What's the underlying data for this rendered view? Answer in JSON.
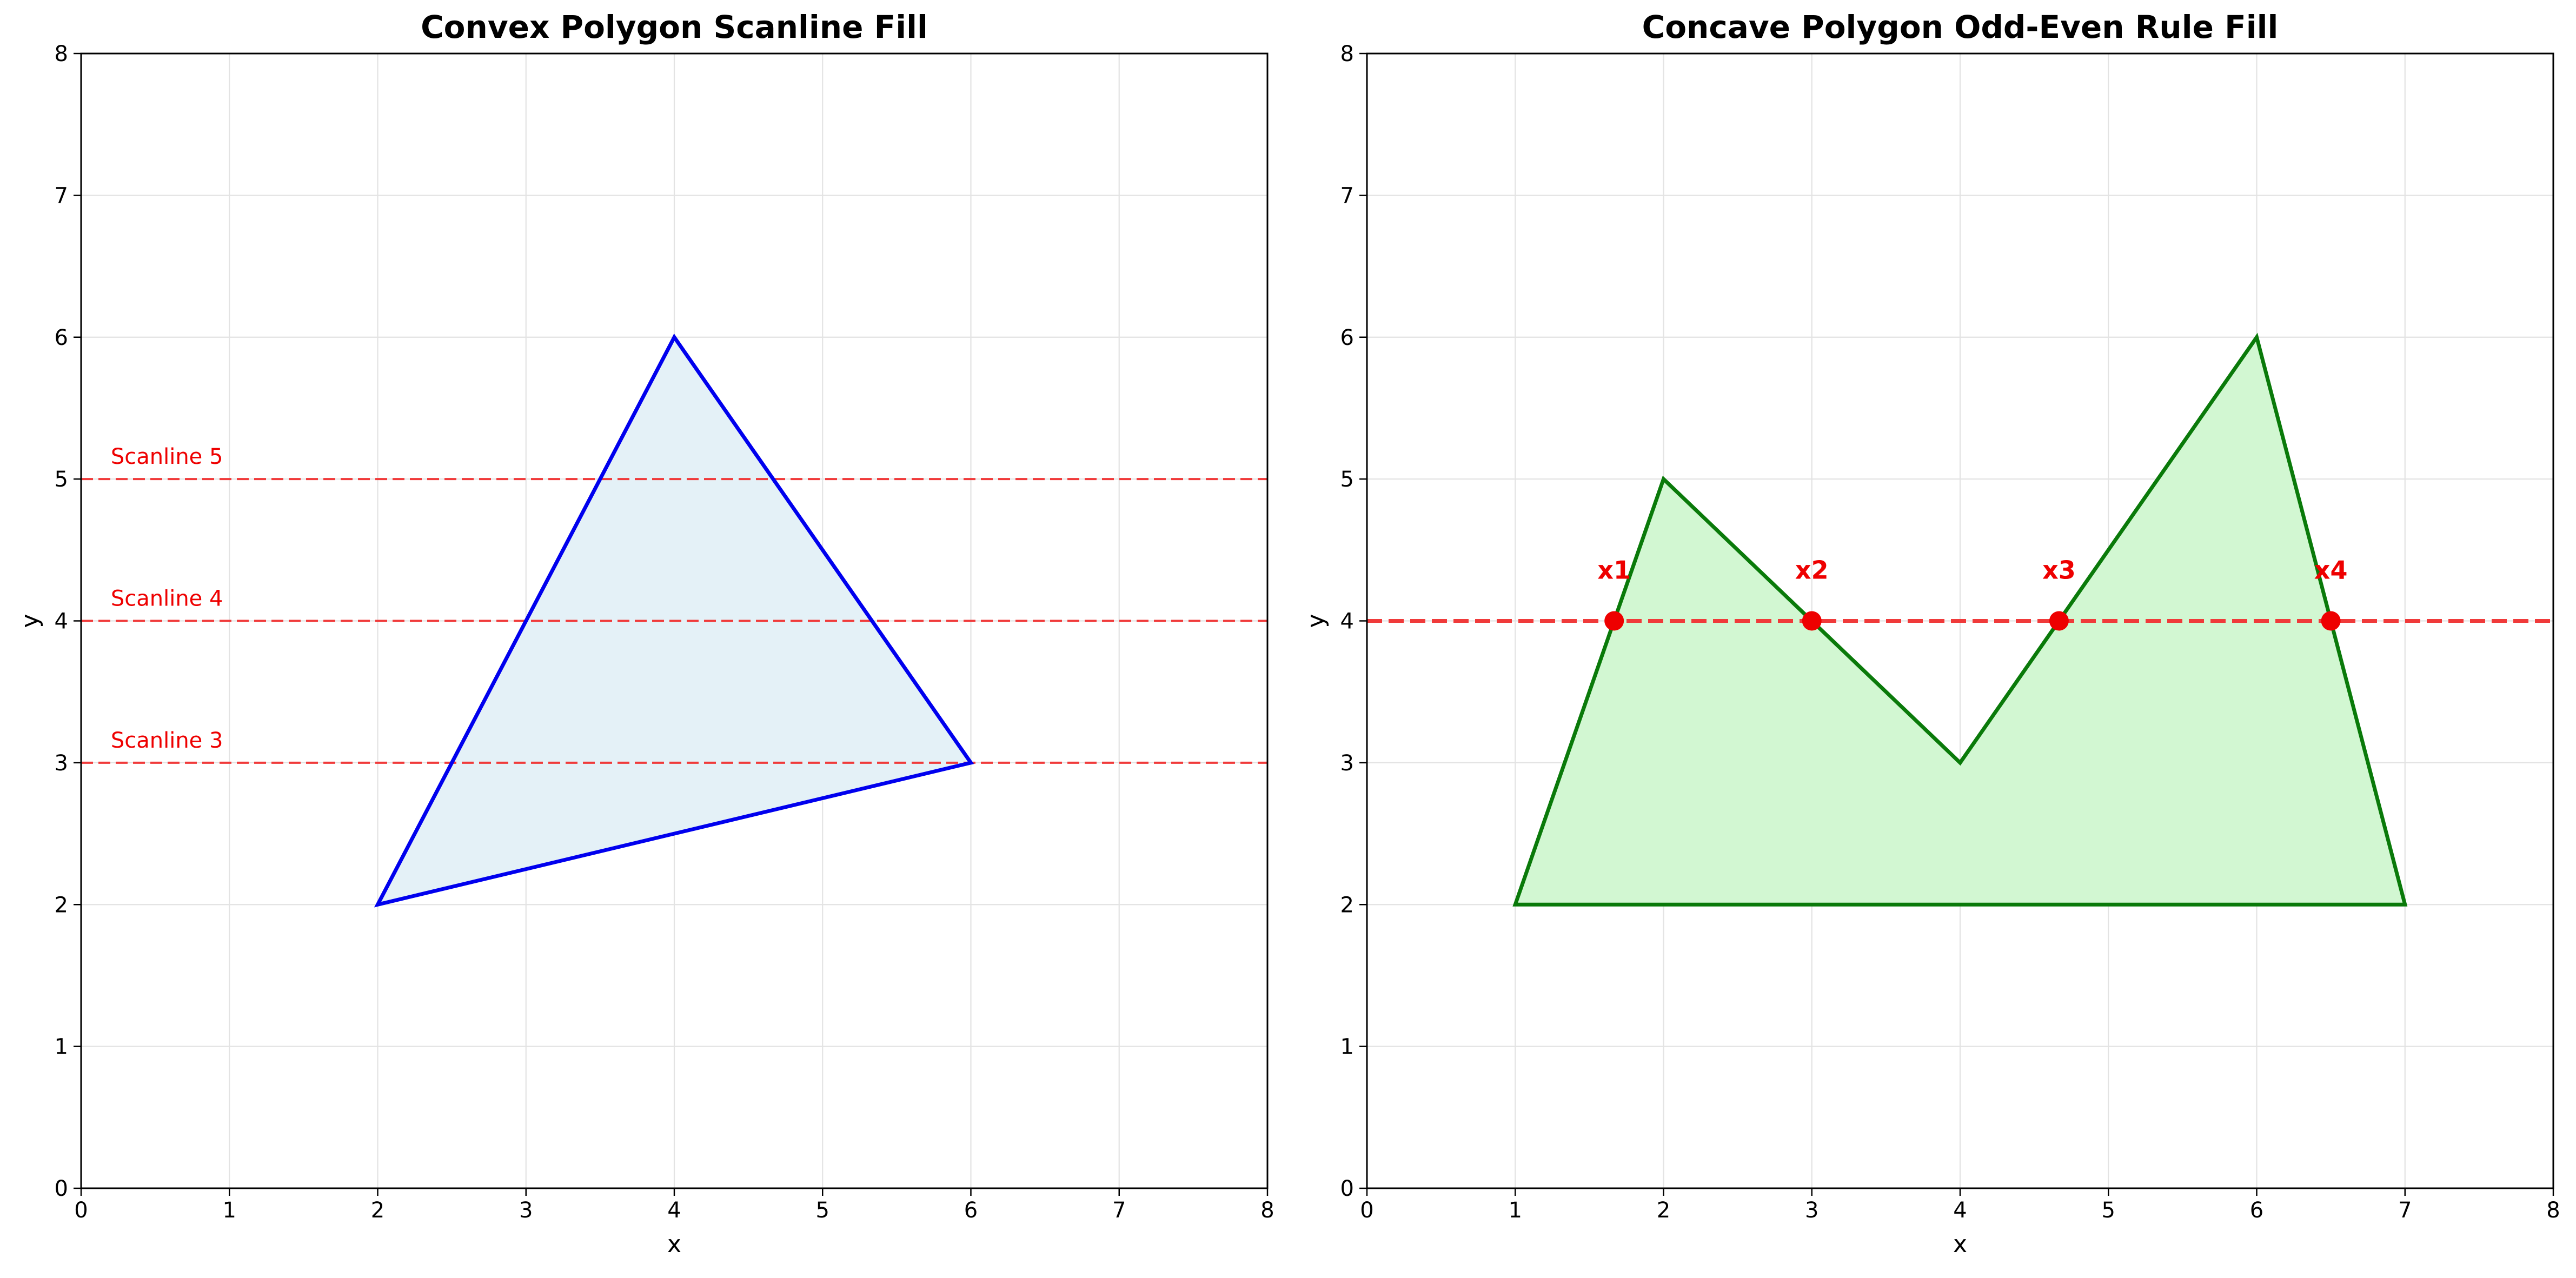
{
  "chart_data": [
    {
      "type": "line",
      "title": "Convex Polygon Scanline Fill",
      "xlabel": "x",
      "ylabel": "y",
      "xlim": [
        0,
        8
      ],
      "ylim": [
        0,
        8
      ],
      "xticks": [
        "0",
        "1",
        "2",
        "3",
        "4",
        "5",
        "6",
        "7",
        "8"
      ],
      "yticks": [
        "0",
        "1",
        "2",
        "3",
        "4",
        "5",
        "6",
        "7",
        "8"
      ],
      "grid": true,
      "polygon": {
        "vertices": [
          [
            2,
            2
          ],
          [
            4,
            6
          ],
          [
            6,
            3
          ]
        ],
        "edge_color": "#0000ee",
        "fill_color": "#e4f1f7"
      },
      "scanlines": [
        {
          "y": 5,
          "label": "Scanline 5"
        },
        {
          "y": 4,
          "label": "Scanline 4"
        },
        {
          "y": 3,
          "label": "Scanline 3"
        }
      ],
      "scanline_color": "#f03a3a"
    },
    {
      "type": "line",
      "title": "Concave Polygon Odd-Even Rule Fill",
      "xlabel": "x",
      "ylabel": "y",
      "xlim": [
        0,
        8
      ],
      "ylim": [
        0,
        8
      ],
      "xticks": [
        "0",
        "1",
        "2",
        "3",
        "4",
        "5",
        "6",
        "7",
        "8"
      ],
      "yticks": [
        "0",
        "1",
        "2",
        "3",
        "4",
        "5",
        "6",
        "7",
        "8"
      ],
      "grid": true,
      "polygon": {
        "vertices": [
          [
            1,
            2
          ],
          [
            2,
            5
          ],
          [
            4,
            3
          ],
          [
            6,
            6
          ],
          [
            7,
            2
          ]
        ],
        "edge_color": "#0a7a0a",
        "fill_color": "#d2f7d2"
      },
      "scanline": {
        "y": 4
      },
      "scanline_color": "#f03a3a",
      "intersections": [
        {
          "label": "x1",
          "x": 1.667,
          "y": 4
        },
        {
          "label": "x2",
          "x": 3.0,
          "y": 4
        },
        {
          "label": "x3",
          "x": 4.667,
          "y": 4
        },
        {
          "label": "x4",
          "x": 6.5,
          "y": 4
        }
      ],
      "intersection_color": "#ee0000"
    }
  ]
}
